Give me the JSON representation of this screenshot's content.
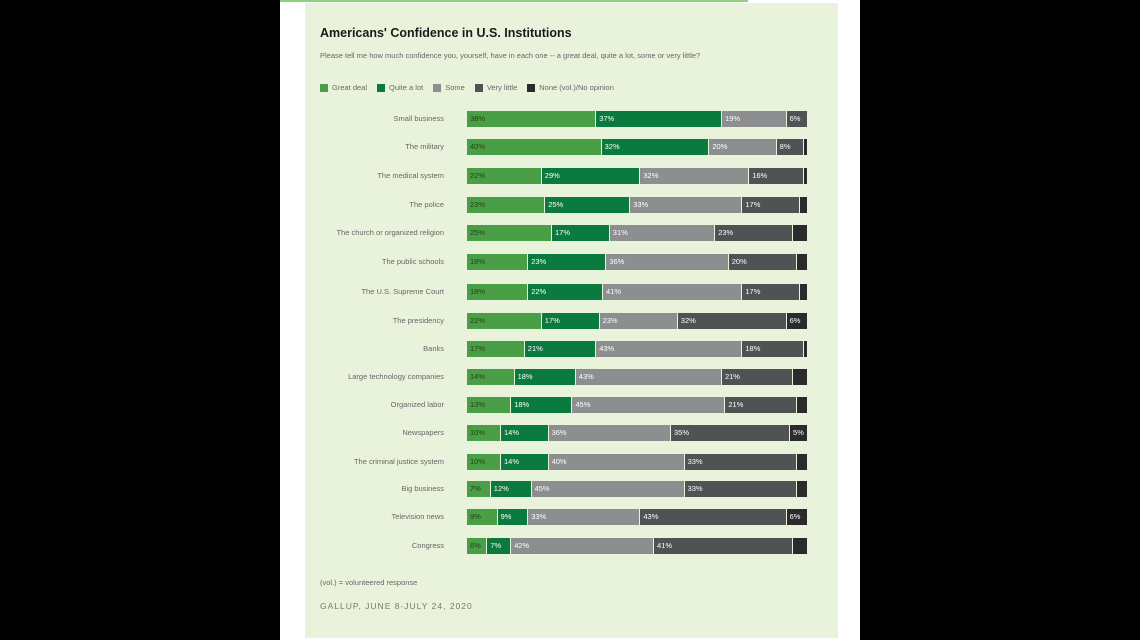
{
  "chart_data": {
    "type": "bar",
    "orientation": "horizontal",
    "stacked": true,
    "title": "Americans' Confidence in U.S. Institutions",
    "subtitle": "Please tell me how much confidence you, yourself, have in each one -- a great deal, quite a lot, some or very little?",
    "legend_position": "top-left",
    "grid": false,
    "categories": [
      "Small business",
      "The military",
      "The medical system",
      "The police",
      "The church or organized religion",
      "The public schools",
      "The U.S. Supreme Court",
      "The presidency",
      "Banks",
      "Large technology companies",
      "Organized labor",
      "Newspapers",
      "The criminal justice system",
      "Big business",
      "Television news",
      "Congress"
    ],
    "series": [
      {
        "name": "Great deal",
        "color": "#4a9e45",
        "values": [
          38,
          40,
          22,
          23,
          25,
          18,
          18,
          22,
          17,
          14,
          13,
          10,
          10,
          7,
          9,
          6
        ]
      },
      {
        "name": "Quite a lot",
        "color": "#0a7a3f",
        "values": [
          37,
          32,
          29,
          25,
          17,
          23,
          22,
          17,
          21,
          18,
          18,
          14,
          14,
          12,
          9,
          7
        ]
      },
      {
        "name": "Some",
        "color": "#8c8e8f",
        "values": [
          19,
          20,
          32,
          33,
          31,
          36,
          41,
          23,
          43,
          43,
          45,
          36,
          40,
          45,
          33,
          42
        ]
      },
      {
        "name": "Very little",
        "color": "#505254",
        "values": [
          6,
          8,
          16,
          17,
          23,
          20,
          17,
          32,
          18,
          21,
          21,
          35,
          33,
          33,
          43,
          41
        ]
      },
      {
        "name": "None (vol.)/No opinion",
        "color": "#2b2b2b",
        "values": [
          0,
          1,
          1,
          2,
          4,
          3,
          2,
          6,
          1,
          4,
          3,
          5,
          3,
          3,
          6,
          4
        ]
      }
    ],
    "labeled_values": [
      [
        "38%",
        "37%",
        "19%",
        "6%",
        ""
      ],
      [
        "40%",
        "32%",
        "20%",
        "8%",
        ""
      ],
      [
        "22%",
        "29%",
        "32%",
        "16%",
        ""
      ],
      [
        "23%",
        "25%",
        "33%",
        "17%",
        ""
      ],
      [
        "25%",
        "17%",
        "31%",
        "23%",
        ""
      ],
      [
        "18%",
        "23%",
        "36%",
        "20%",
        ""
      ],
      [
        "18%",
        "22%",
        "41%",
        "17%",
        ""
      ],
      [
        "22%",
        "17%",
        "23%",
        "32%",
        "6%"
      ],
      [
        "17%",
        "21%",
        "43%",
        "18%",
        ""
      ],
      [
        "14%",
        "18%",
        "43%",
        "21%",
        ""
      ],
      [
        "13%",
        "18%",
        "45%",
        "21%",
        ""
      ],
      [
        "10%",
        "14%",
        "36%",
        "35%",
        "5%"
      ],
      [
        "10%",
        "14%",
        "40%",
        "33%",
        ""
      ],
      [
        "7%",
        "12%",
        "45%",
        "33%",
        ""
      ],
      [
        "9%",
        "9%",
        "33%",
        "43%",
        "6%"
      ],
      [
        "6%",
        "7%",
        "42%",
        "41%",
        ""
      ]
    ],
    "note": "(vol.) = volunteered response",
    "source": "GALLUP, JUNE 8-JULY 24, 2020"
  }
}
